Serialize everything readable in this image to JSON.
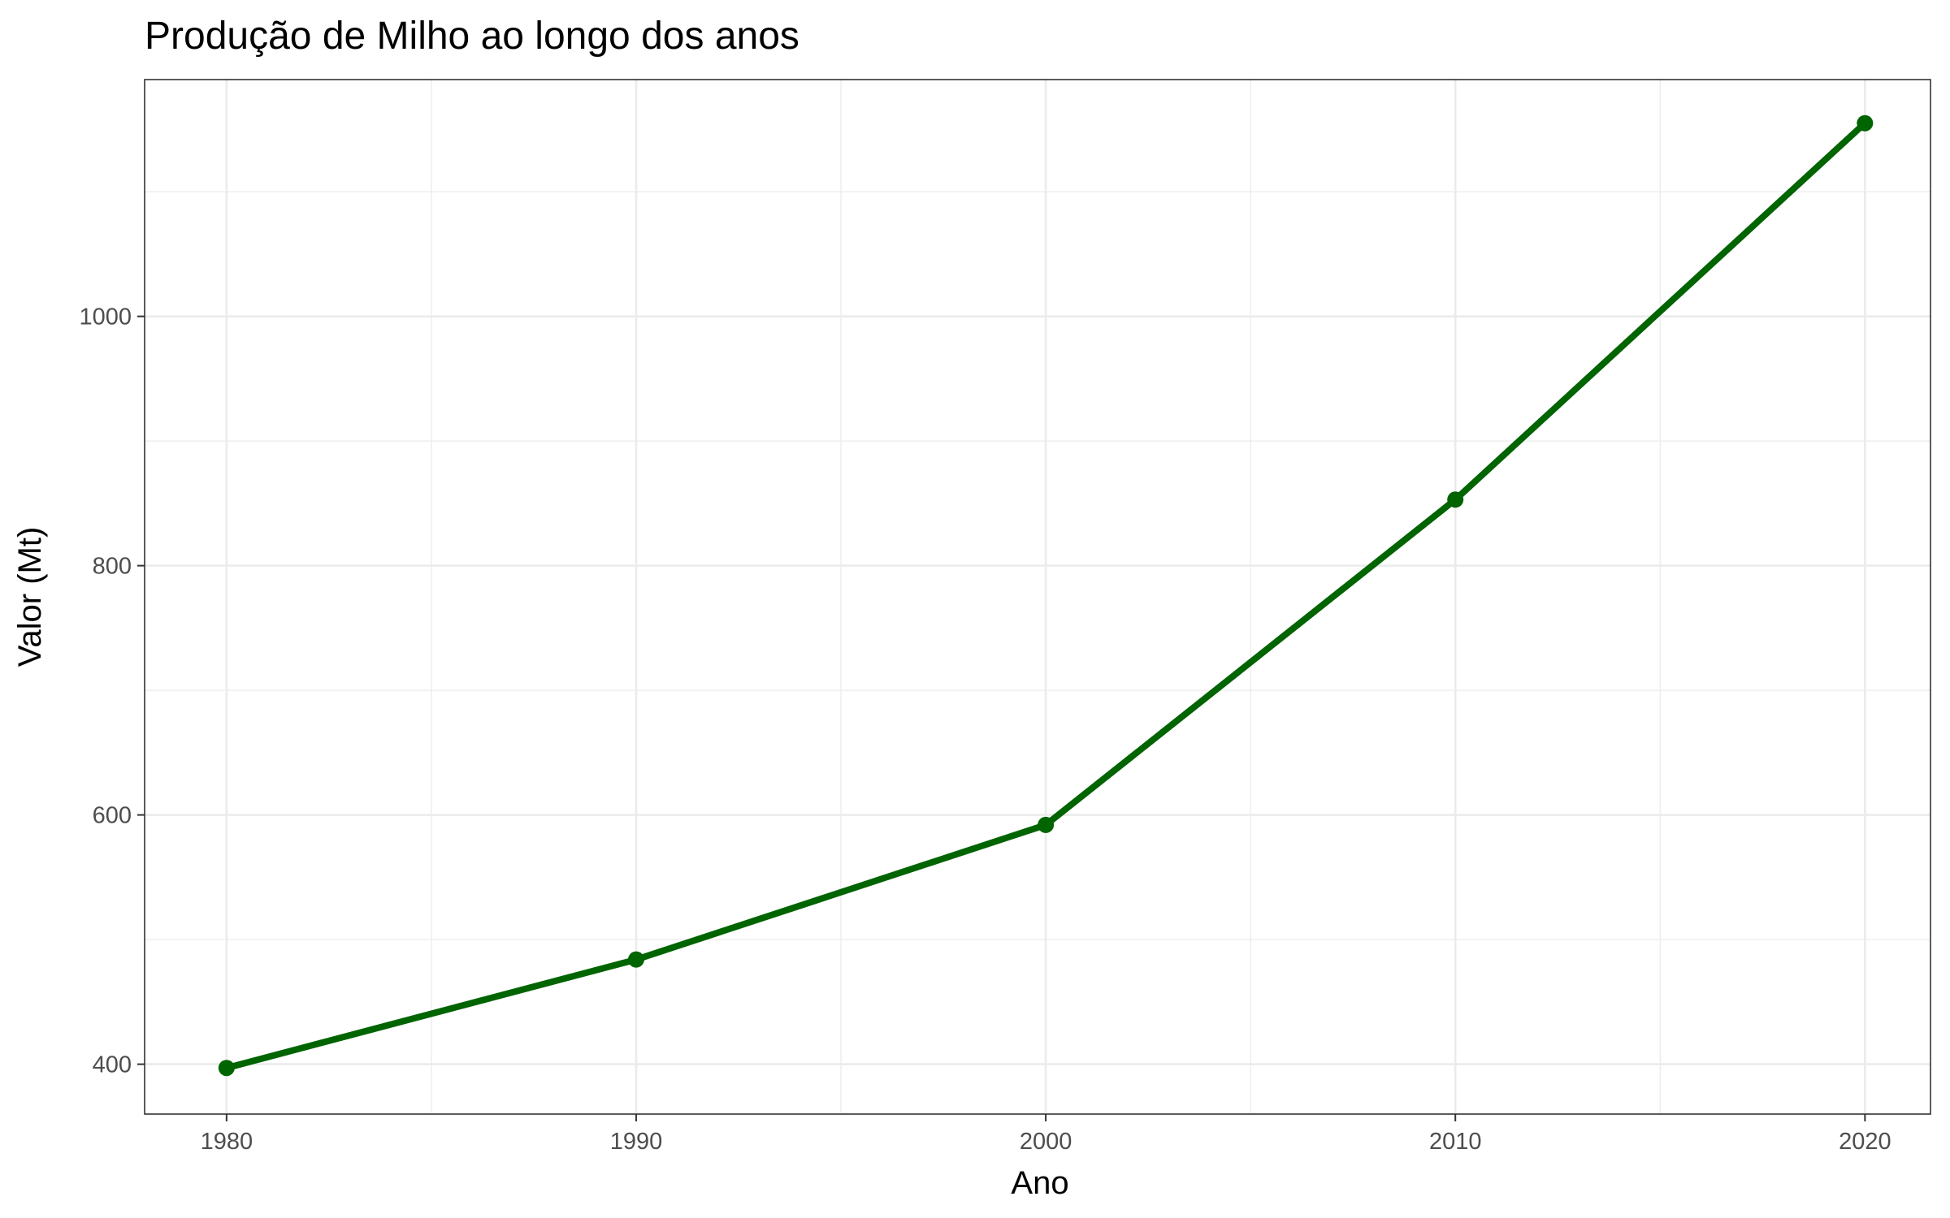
{
  "chart_data": {
    "type": "line",
    "title": "Produção de Milho ao longo dos anos",
    "xlabel": "Ano",
    "ylabel": "Valor (Mt)",
    "x": [
      1980,
      1990,
      2000,
      2010,
      2020
    ],
    "series": [
      {
        "values": [
          397,
          484,
          592,
          853,
          1155
        ]
      }
    ],
    "xlim": [
      1978,
      2021.6
    ],
    "ylim": [
      360,
      1190
    ],
    "x_ticks": [
      1980,
      1990,
      2000,
      2010,
      2020
    ],
    "x_tick_labels": [
      "1980",
      "1990",
      "2000",
      "2010",
      "2020"
    ],
    "x_minor_ticks": [
      1985,
      1995,
      2005,
      2015
    ],
    "y_ticks": [
      400,
      600,
      800,
      1000
    ],
    "y_tick_labels": [
      "400",
      "600",
      "800",
      "1000"
    ],
    "y_minor_ticks": [
      500,
      700,
      900,
      1100
    ],
    "grid": true,
    "legend": "none",
    "colors": {
      "line": "#006400",
      "grid": "#ebebeb",
      "panel_border": "#333333"
    }
  }
}
